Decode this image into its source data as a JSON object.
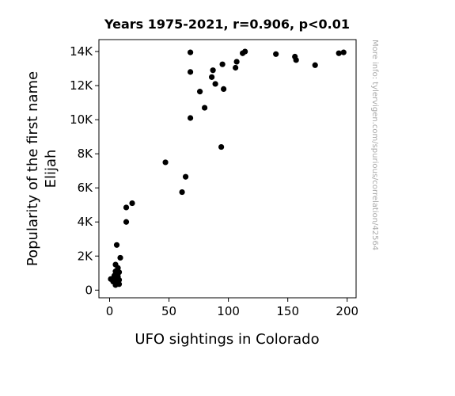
{
  "chart_data": {
    "type": "scatter",
    "title": "Years 1975-2021, r=0.906, p<0.01",
    "xlabel": "UFO sightings in Colorado",
    "ylabel_lines": [
      "Popularity of the first name",
      "Elijah"
    ],
    "side_note": "More info: tylervigen.com/spurious/correlation/42564",
    "xlim": [
      -9,
      207.5
    ],
    "ylim": [
      -450,
      14700
    ],
    "xticks": [
      0,
      50,
      100,
      150,
      200
    ],
    "xtick_labels": [
      "0",
      "50",
      "100",
      "150",
      "200"
    ],
    "yticks": [
      0,
      2000,
      4000,
      6000,
      8000,
      10000,
      12000,
      14000
    ],
    "ytick_labels": [
      "0",
      "2K",
      "4K",
      "6K",
      "8K",
      "10K",
      "12K",
      "14K"
    ],
    "grid": false,
    "marker_color": "#000000",
    "points": [
      [
        1,
        650
      ],
      [
        3,
        700
      ],
      [
        3,
        500
      ],
      [
        4,
        850
      ],
      [
        4,
        600
      ],
      [
        5,
        1100
      ],
      [
        5,
        1500
      ],
      [
        5,
        450
      ],
      [
        5,
        300
      ],
      [
        6,
        700
      ],
      [
        6,
        1000
      ],
      [
        6,
        2650
      ],
      [
        7,
        1300
      ],
      [
        7,
        800
      ],
      [
        7,
        500
      ],
      [
        7,
        380
      ],
      [
        8,
        1050
      ],
      [
        8,
        600
      ],
      [
        8,
        350
      ],
      [
        9,
        1900
      ],
      [
        14,
        4850
      ],
      [
        14,
        4000
      ],
      [
        19,
        5100
      ],
      [
        47,
        7500
      ],
      [
        61,
        5750
      ],
      [
        64,
        6650
      ],
      [
        68,
        13950
      ],
      [
        68,
        12800
      ],
      [
        68,
        10100
      ],
      [
        76,
        11650
      ],
      [
        80,
        10700
      ],
      [
        86,
        12500
      ],
      [
        87,
        12900
      ],
      [
        89,
        12100
      ],
      [
        94,
        8400
      ],
      [
        95,
        13250
      ],
      [
        96,
        11800
      ],
      [
        106,
        13050
      ],
      [
        107,
        13400
      ],
      [
        112,
        13900
      ],
      [
        114,
        14000
      ],
      [
        140,
        13850
      ],
      [
        156,
        13700
      ],
      [
        157,
        13500
      ],
      [
        173,
        13200
      ],
      [
        193,
        13900
      ],
      [
        197,
        13950
      ]
    ]
  }
}
